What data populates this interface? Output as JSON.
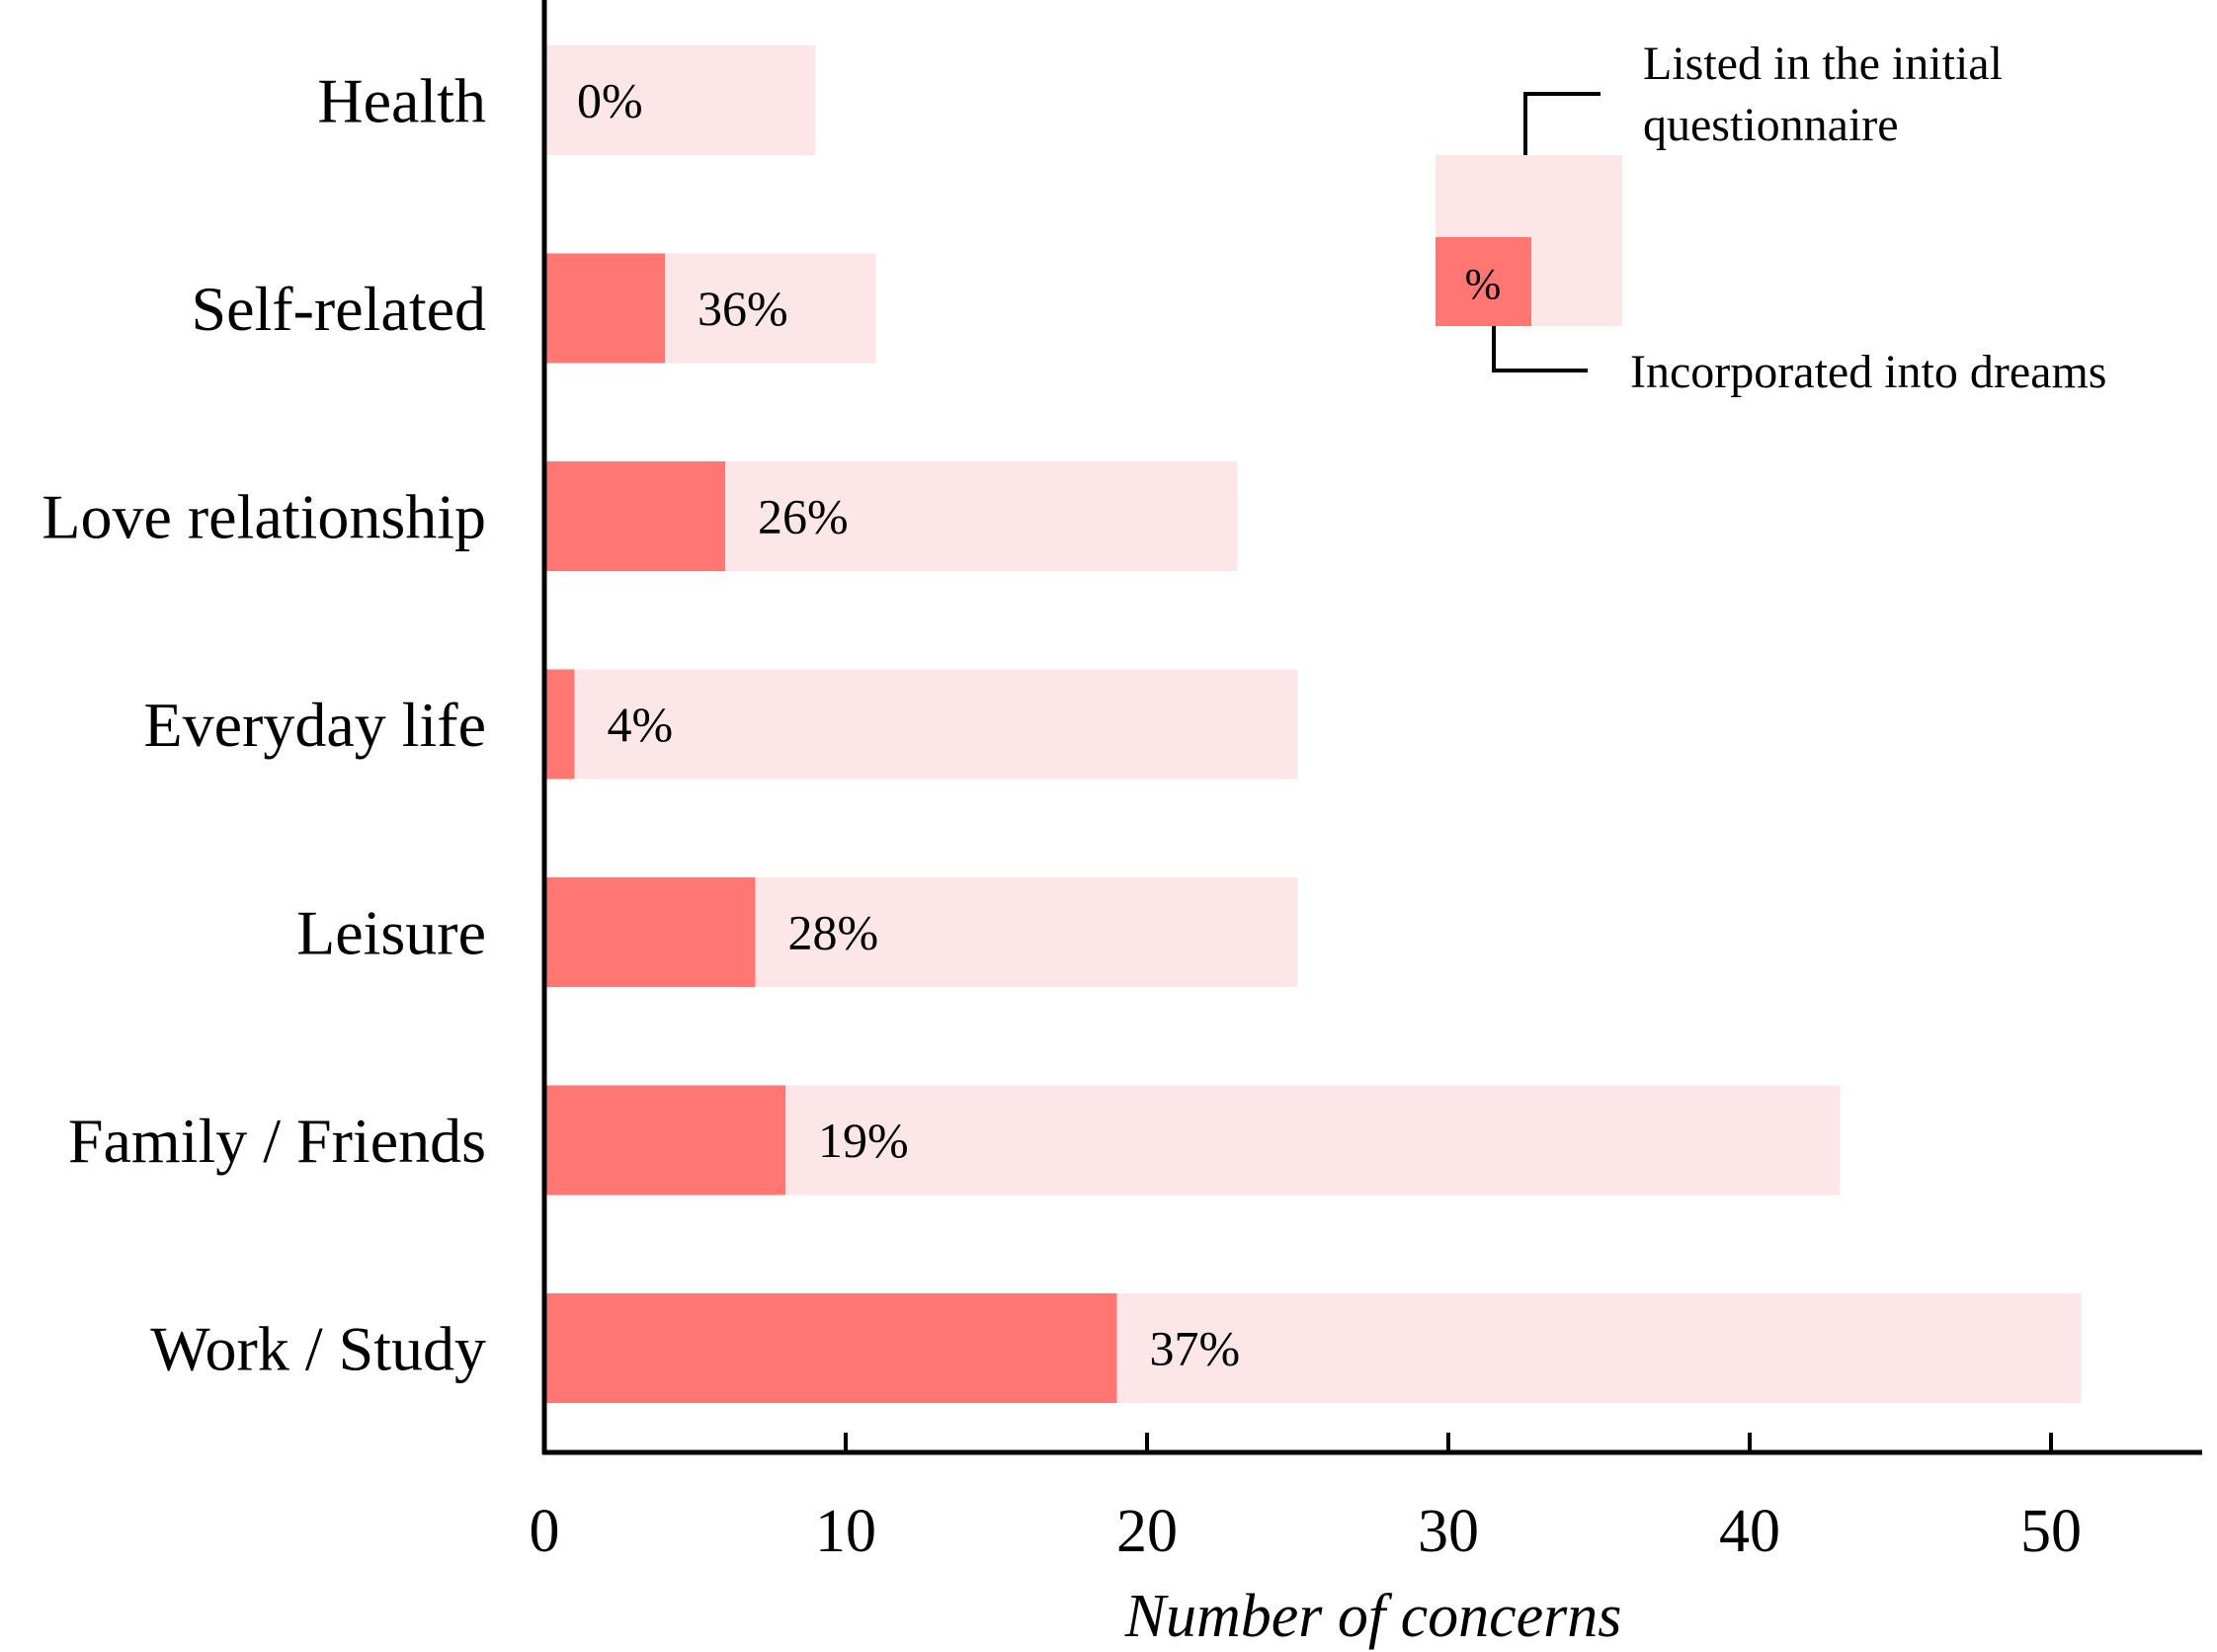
{
  "colors": {
    "listed": "#fde6e8",
    "incorporated": "#ff7672",
    "axis": "#000000",
    "text": "#000000"
  },
  "chart_data": {
    "type": "bar",
    "orientation": "horizontal",
    "stacked": "overlay",
    "categories": [
      "Health",
      "Self-related",
      "Love relationship",
      "Everyday life",
      "Leisure",
      "Family / Friends",
      "Work / Study"
    ],
    "series": [
      {
        "name": "Listed in the initial questionnaire",
        "values": [
          9,
          11,
          23,
          25,
          25,
          43,
          51
        ]
      },
      {
        "name": "Incorporated into dreams",
        "values": [
          0,
          4,
          6,
          1,
          7,
          8,
          19
        ]
      }
    ],
    "bar_labels": [
      "0%",
      "36%",
      "26%",
      "4%",
      "28%",
      "19%",
      "37%"
    ],
    "title": "",
    "xlabel": "Number of concerns",
    "ylabel": "",
    "xlim": [
      0,
      55
    ],
    "xticks": [
      0,
      10,
      20,
      30,
      40,
      50
    ],
    "grid": false,
    "legend": {
      "placement": "top-right",
      "listed_label": "Listed in the initial questionnaire",
      "listed_lines": [
        "Listed in the initial",
        "questionnaire"
      ],
      "incorporated_label": "Incorporated into dreams",
      "swatch_text": "%"
    }
  }
}
